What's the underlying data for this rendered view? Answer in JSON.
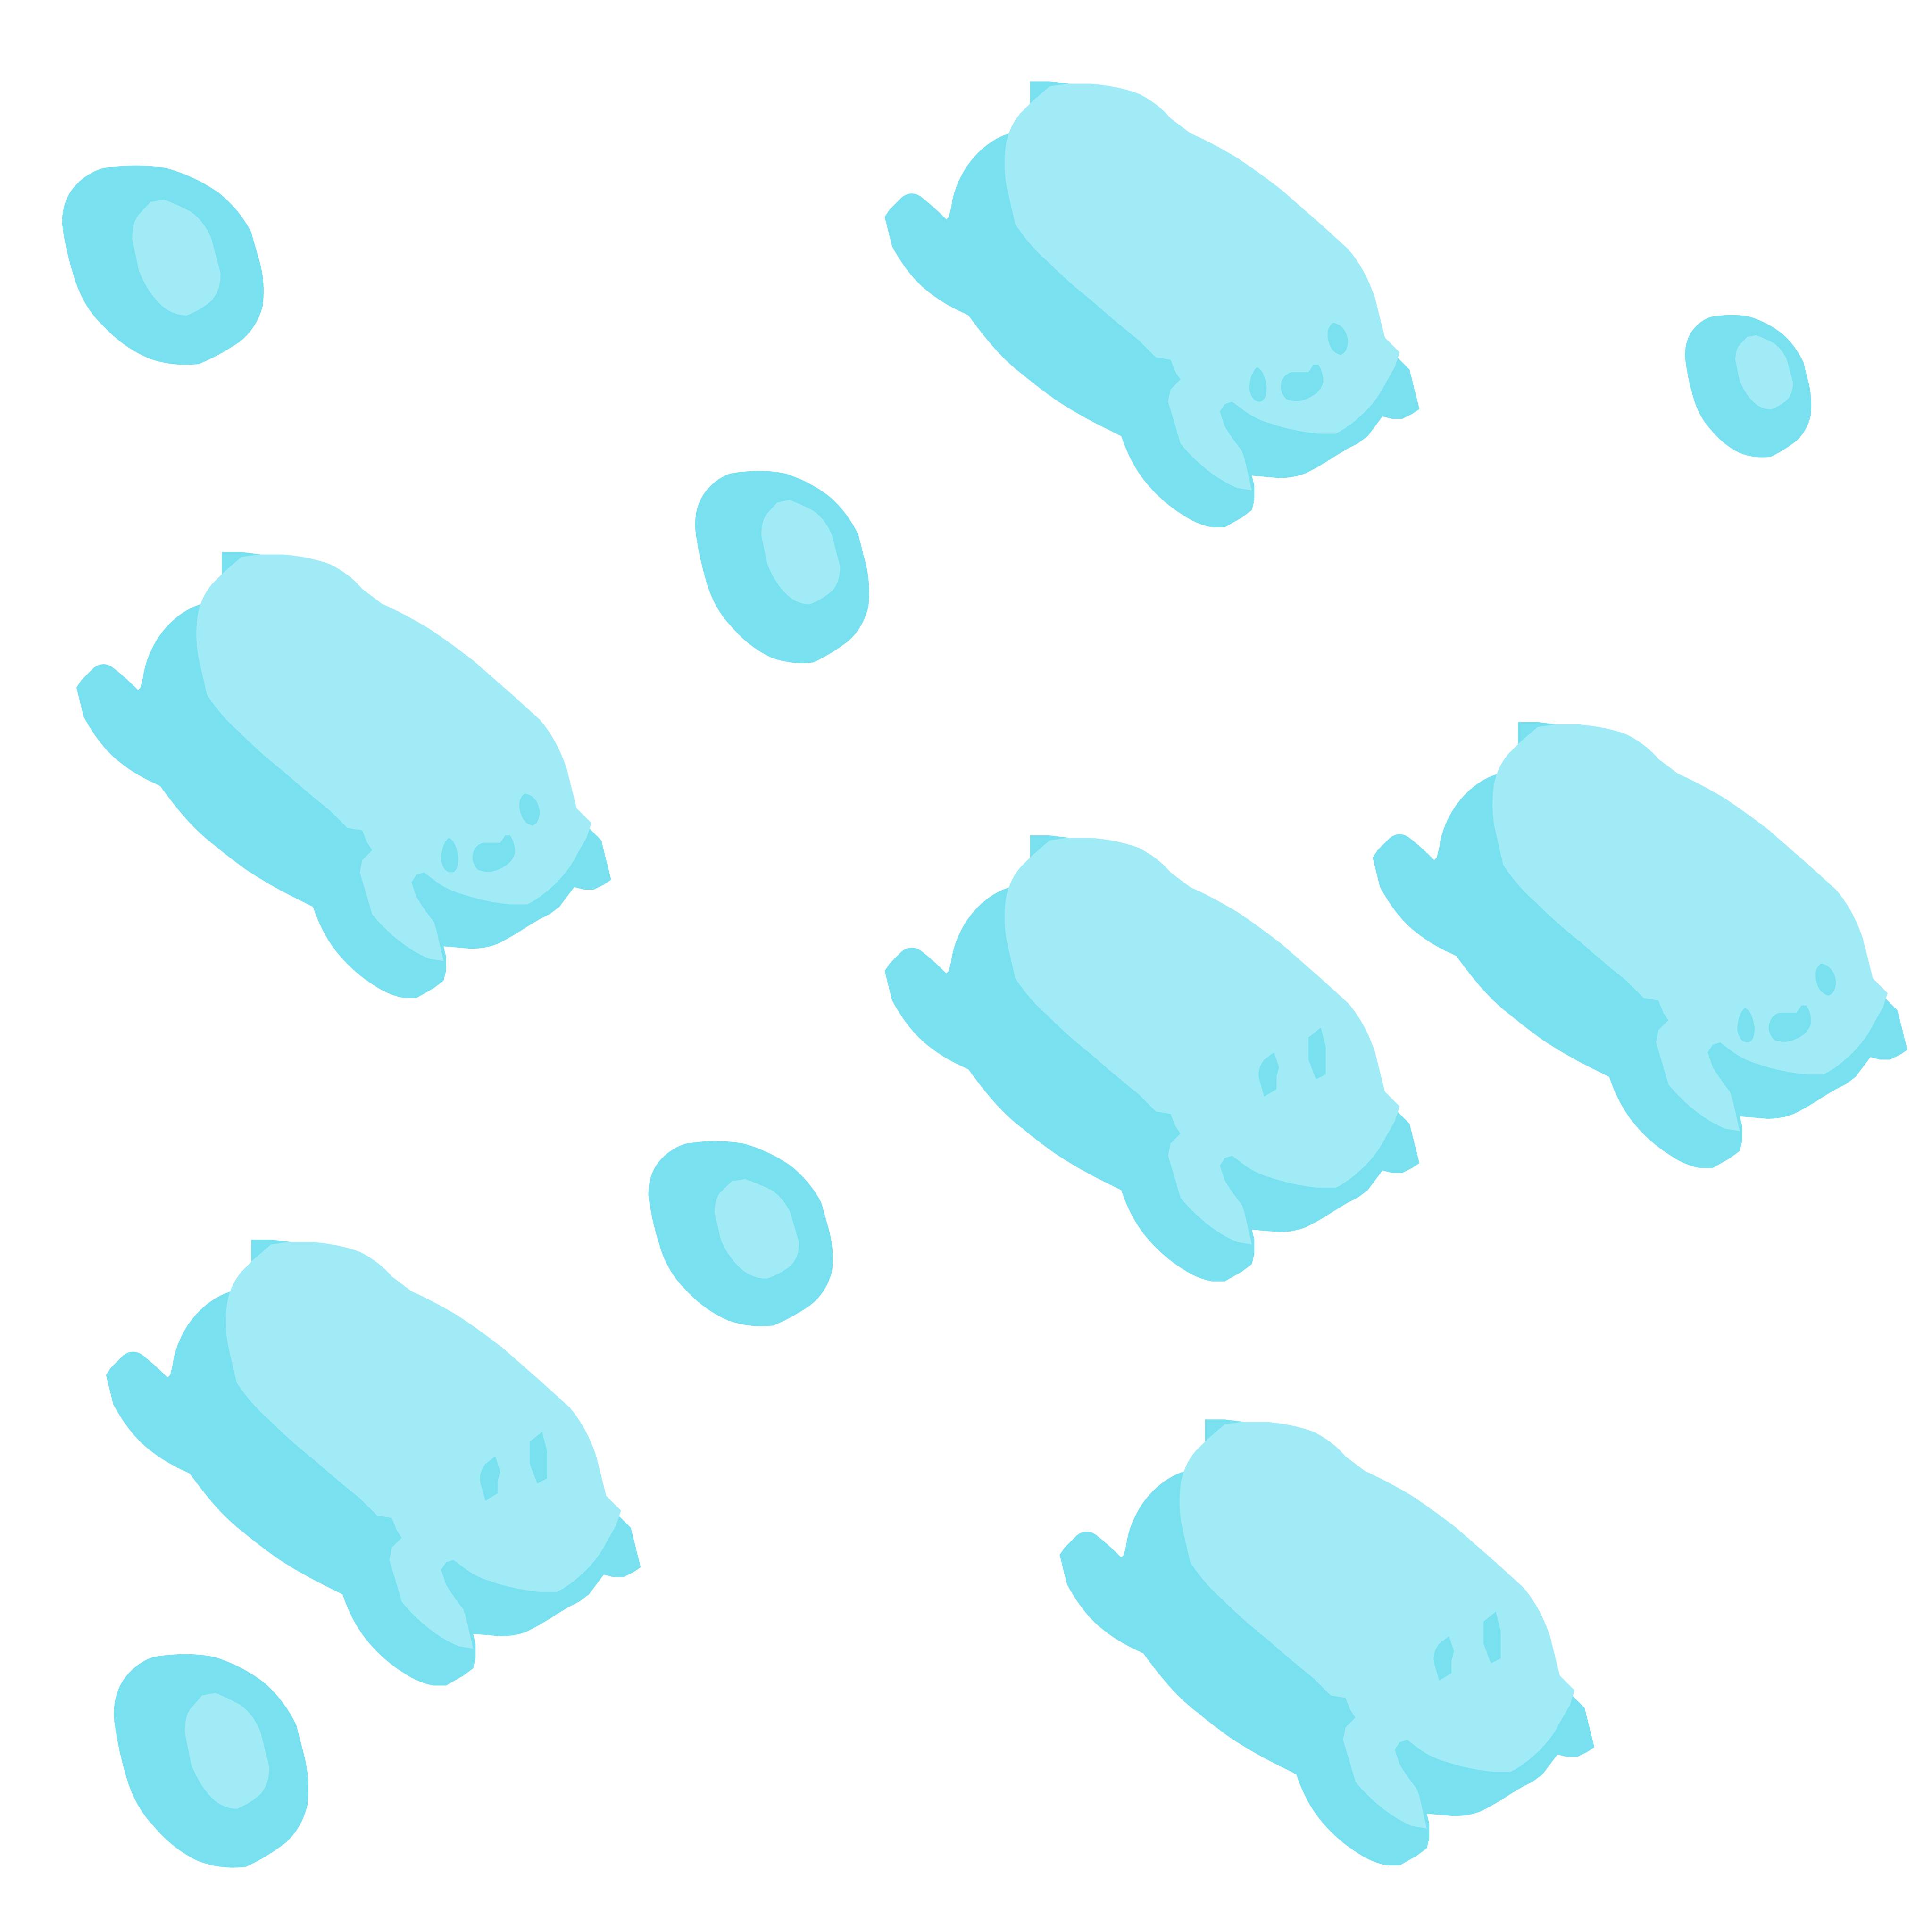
{
  "colors": {
    "background": "#ffffff",
    "shadow": "#79e0f0",
    "body": "#a0ebf6",
    "feature": "#79e0f0"
  },
  "creatures": [
    {
      "name": "creature-smiling",
      "icon": "smiling-blob-icon"
    },
    {
      "name": "creature-smiling",
      "icon": "smiling-blob-icon"
    },
    {
      "name": "creature-smiling",
      "icon": "smiling-blob-icon"
    },
    {
      "name": "creature-squinting",
      "icon": "squinting-blob-icon"
    },
    {
      "name": "creature-squinting",
      "icon": "squinting-blob-icon"
    },
    {
      "name": "creature-squinting",
      "icon": "squinting-blob-icon"
    }
  ],
  "pebbles": [
    {
      "name": "pebble",
      "icon": "pebble-icon"
    },
    {
      "name": "pebble",
      "icon": "pebble-icon"
    },
    {
      "name": "pebble",
      "icon": "pebble-icon"
    },
    {
      "name": "pebble",
      "icon": "pebble-icon"
    },
    {
      "name": "pebble",
      "icon": "pebble-icon"
    }
  ]
}
